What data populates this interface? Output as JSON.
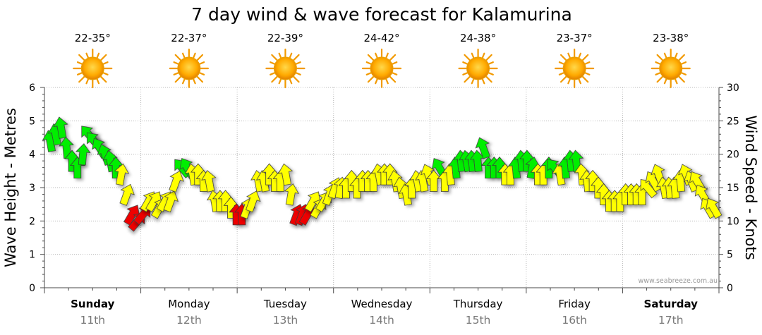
{
  "chart_data": {
    "type": "forecast",
    "title": "7 day wind & wave forecast for Kalamurina",
    "y_left": {
      "label": "Wave Height - Metres",
      "range": [
        0,
        6
      ],
      "ticks": [
        0,
        1,
        2,
        3,
        4,
        5,
        6
      ]
    },
    "y_right": {
      "label": "Wind Speed - Knots",
      "range": [
        0,
        30
      ],
      "ticks": [
        0,
        5,
        10,
        15,
        20,
        25,
        30
      ]
    },
    "days": [
      {
        "name": "Sunday",
        "date": "11th",
        "temp": "22-35°",
        "bold": true,
        "icon": "sun-icon"
      },
      {
        "name": "Monday",
        "date": "12th",
        "temp": "22-37°",
        "bold": false,
        "icon": "sun-icon"
      },
      {
        "name": "Tuesday",
        "date": "13th",
        "temp": "22-39°",
        "bold": false,
        "icon": "sun-icon"
      },
      {
        "name": "Wednesday",
        "date": "14th",
        "temp": "24-42°",
        "bold": false,
        "icon": "sun-icon"
      },
      {
        "name": "Thursday",
        "date": "15th",
        "temp": "24-38°",
        "bold": false,
        "icon": "sun-icon"
      },
      {
        "name": "Friday",
        "date": "16th",
        "temp": "23-37°",
        "bold": false,
        "icon": "sun-icon"
      },
      {
        "name": "Saturday",
        "date": "17th",
        "temp": "23-38°",
        "bold": true,
        "icon": "sun-icon"
      }
    ],
    "wind_knots": [
      22,
      23,
      24,
      21,
      19,
      18,
      20,
      23,
      22,
      21,
      20,
      19,
      18,
      17,
      14,
      11,
      10,
      11,
      13,
      13,
      12,
      13,
      13,
      16,
      18,
      18,
      17,
      17,
      16,
      16,
      13,
      13,
      13,
      12,
      11,
      11,
      12,
      13,
      16,
      16,
      17,
      16,
      16,
      17,
      14,
      11,
      11,
      11,
      13,
      12,
      13,
      14,
      15,
      15,
      15,
      16,
      15,
      16,
      16,
      16,
      17,
      17,
      17,
      16,
      15,
      14,
      15,
      16,
      16,
      17,
      16,
      18,
      16,
      17,
      18,
      19,
      19,
      19,
      19,
      21,
      18,
      18,
      18,
      17,
      17,
      18,
      19,
      19,
      18,
      17,
      17,
      18,
      18,
      17,
      18,
      19,
      19,
      17,
      16,
      16,
      15,
      14,
      13,
      13,
      13,
      14,
      14,
      14,
      14,
      15,
      16,
      17,
      15,
      15,
      15,
      16,
      17,
      16,
      16,
      14,
      12,
      12
    ],
    "wind_direction_deg": [
      170,
      170,
      170,
      175,
      180,
      180,
      185,
      140,
      140,
      150,
      160,
      170,
      180,
      190,
      200,
      210,
      220,
      220,
      210,
      210,
      210,
      210,
      200,
      200,
      140,
      150,
      170,
      180,
      180,
      170,
      170,
      180,
      180,
      180,
      180,
      180,
      200,
      200,
      170,
      170,
      180,
      180,
      180,
      170,
      190,
      200,
      200,
      210,
      210,
      210,
      210,
      200,
      200,
      190,
      180,
      180,
      180,
      180,
      180,
      180,
      170,
      180,
      180,
      170,
      170,
      170,
      180,
      170,
      170,
      160,
      180,
      150,
      180,
      175,
      175,
      175,
      170,
      175,
      175,
      160,
      180,
      180,
      180,
      180,
      180,
      175,
      175,
      180,
      190,
      180,
      180,
      180,
      140,
      170,
      175,
      175,
      175,
      175,
      175,
      180,
      180,
      180,
      180,
      180,
      180,
      180,
      180,
      180,
      180,
      140,
      150,
      160,
      170,
      175,
      175,
      175,
      160,
      160,
      150,
      150,
      150,
      150
    ],
    "wind_colors": {
      "strong": "#00ee00",
      "moderate": "#ffff00",
      "light": "#ee0000"
    },
    "thresholds": {
      "red_below_knots": 12,
      "green_above_knots": 18
    },
    "watermark": "www.seabreeze.com.au",
    "grid": true
  }
}
